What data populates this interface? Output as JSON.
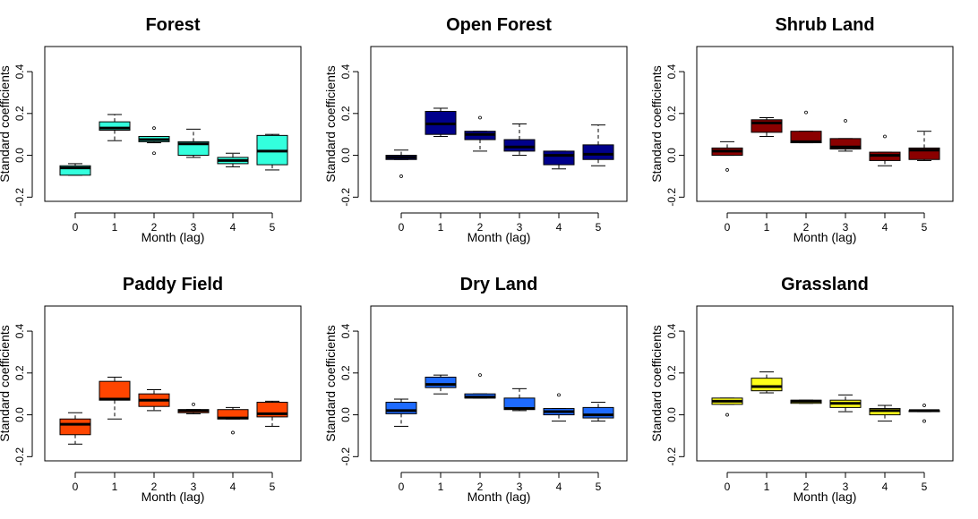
{
  "chart_data": [
    {
      "type": "boxplot",
      "title": "Forest",
      "xlabel": "Month (lag)",
      "ylabel": "Standard coefficients",
      "fill": "#33ffdd",
      "categories": [
        "0",
        "1",
        "2",
        "3",
        "4",
        "5"
      ],
      "yticks": [
        "-0.2",
        "0.0",
        "0.2",
        "0.4"
      ],
      "ylim": [
        -0.22,
        0.52
      ],
      "boxes": [
        {
          "min": -0.095,
          "q1": -0.095,
          "median": -0.06,
          "q3": -0.05,
          "max": -0.04,
          "outliers": []
        },
        {
          "min": 0.07,
          "q1": 0.12,
          "median": 0.13,
          "q3": 0.16,
          "max": 0.195,
          "outliers": []
        },
        {
          "min": 0.06,
          "q1": 0.065,
          "median": 0.075,
          "q3": 0.09,
          "max": 0.09,
          "outliers": [
            0.13,
            0.01
          ]
        },
        {
          "min": -0.01,
          "q1": 0.0,
          "median": 0.055,
          "q3": 0.065,
          "max": 0.125,
          "outliers": []
        },
        {
          "min": -0.055,
          "q1": -0.04,
          "median": -0.025,
          "q3": -0.01,
          "max": 0.01,
          "outliers": []
        },
        {
          "min": -0.07,
          "q1": -0.045,
          "median": 0.02,
          "q3": 0.095,
          "max": 0.1,
          "outliers": []
        }
      ]
    },
    {
      "type": "boxplot",
      "title": "Open Forest",
      "xlabel": "Month (lag)",
      "ylabel": "Standard coefficients",
      "fill": "#00008b",
      "categories": [
        "0",
        "1",
        "2",
        "3",
        "4",
        "5"
      ],
      "yticks": [
        "-0.2",
        "0.0",
        "0.2",
        "0.4"
      ],
      "ylim": [
        -0.22,
        0.52
      ],
      "boxes": [
        {
          "min": -0.02,
          "q1": -0.02,
          "median": -0.01,
          "q3": 0.0,
          "max": 0.025,
          "outliers": [
            -0.1
          ]
        },
        {
          "min": 0.09,
          "q1": 0.1,
          "median": 0.15,
          "q3": 0.21,
          "max": 0.225,
          "outliers": []
        },
        {
          "min": 0.02,
          "q1": 0.075,
          "median": 0.1,
          "q3": 0.115,
          "max": 0.115,
          "outliers": [
            0.18
          ]
        },
        {
          "min": 0.0,
          "q1": 0.02,
          "median": 0.04,
          "q3": 0.075,
          "max": 0.15,
          "outliers": []
        },
        {
          "min": -0.065,
          "q1": -0.045,
          "median": 0.0,
          "q3": 0.02,
          "max": 0.02,
          "outliers": []
        },
        {
          "min": -0.05,
          "q1": -0.02,
          "median": 0.005,
          "q3": 0.05,
          "max": 0.145,
          "outliers": []
        }
      ]
    },
    {
      "type": "boxplot",
      "title": "Shrub Land",
      "xlabel": "Month (lag)",
      "ylabel": "Standard coefficients",
      "fill": "#8b0000",
      "categories": [
        "0",
        "1",
        "2",
        "3",
        "4",
        "5"
      ],
      "yticks": [
        "-0.2",
        "0.0",
        "0.2",
        "0.4"
      ],
      "ylim": [
        -0.22,
        0.52
      ],
      "boxes": [
        {
          "min": 0.0,
          "q1": 0.0,
          "median": 0.02,
          "q3": 0.035,
          "max": 0.065,
          "outliers": [
            -0.07
          ]
        },
        {
          "min": 0.09,
          "q1": 0.11,
          "median": 0.155,
          "q3": 0.17,
          "max": 0.18,
          "outliers": []
        },
        {
          "min": 0.06,
          "q1": 0.06,
          "median": 0.065,
          "q3": 0.115,
          "max": 0.115,
          "outliers": [
            0.205
          ]
        },
        {
          "min": 0.02,
          "q1": 0.03,
          "median": 0.04,
          "q3": 0.08,
          "max": 0.08,
          "outliers": [
            0.165
          ]
        },
        {
          "min": -0.05,
          "q1": -0.025,
          "median": 0.0,
          "q3": 0.015,
          "max": 0.015,
          "outliers": [
            0.09
          ]
        },
        {
          "min": -0.025,
          "q1": -0.02,
          "median": 0.025,
          "q3": 0.035,
          "max": 0.115,
          "outliers": []
        }
      ]
    },
    {
      "type": "boxplot",
      "title": "Paddy Field",
      "xlabel": "Month (lag)",
      "ylabel": "Standard coefficients",
      "fill": "#ff4500",
      "categories": [
        "0",
        "1",
        "2",
        "3",
        "4",
        "5"
      ],
      "yticks": [
        "-0.2",
        "0.0",
        "0.2",
        "0.4"
      ],
      "ylim": [
        -0.22,
        0.52
      ],
      "boxes": [
        {
          "min": -0.14,
          "q1": -0.095,
          "median": -0.045,
          "q3": -0.02,
          "max": 0.01,
          "outliers": []
        },
        {
          "min": -0.02,
          "q1": 0.07,
          "median": 0.075,
          "q3": 0.16,
          "max": 0.18,
          "outliers": []
        },
        {
          "min": 0.02,
          "q1": 0.04,
          "median": 0.07,
          "q3": 0.1,
          "max": 0.12,
          "outliers": []
        },
        {
          "min": 0.005,
          "q1": 0.01,
          "median": 0.02,
          "q3": 0.025,
          "max": 0.025,
          "outliers": [
            0.05
          ]
        },
        {
          "min": -0.02,
          "q1": -0.02,
          "median": -0.015,
          "q3": 0.025,
          "max": 0.035,
          "outliers": [
            -0.085
          ]
        },
        {
          "min": -0.055,
          "q1": -0.01,
          "median": 0.005,
          "q3": 0.06,
          "max": 0.065,
          "outliers": []
        }
      ]
    },
    {
      "type": "boxplot",
      "title": "Dry Land",
      "xlabel": "Month (lag)",
      "ylabel": "Standard coefficients",
      "fill": "#1e6bff",
      "categories": [
        "0",
        "1",
        "2",
        "3",
        "4",
        "5"
      ],
      "yticks": [
        "-0.2",
        "0.0",
        "0.2",
        "0.4"
      ],
      "ylim": [
        -0.22,
        0.52
      ],
      "boxes": [
        {
          "min": -0.055,
          "q1": 0.005,
          "median": 0.02,
          "q3": 0.06,
          "max": 0.075,
          "outliers": []
        },
        {
          "min": 0.1,
          "q1": 0.13,
          "median": 0.145,
          "q3": 0.18,
          "max": 0.19,
          "outliers": []
        },
        {
          "min": 0.08,
          "q1": 0.08,
          "median": 0.085,
          "q3": 0.1,
          "max": 0.1,
          "outliers": [
            0.19
          ]
        },
        {
          "min": 0.02,
          "q1": 0.025,
          "median": 0.03,
          "q3": 0.08,
          "max": 0.125,
          "outliers": []
        },
        {
          "min": -0.03,
          "q1": 0.0,
          "median": 0.015,
          "q3": 0.03,
          "max": 0.03,
          "outliers": [
            0.095
          ]
        },
        {
          "min": -0.03,
          "q1": -0.015,
          "median": 0.0,
          "q3": 0.035,
          "max": 0.06,
          "outliers": []
        }
      ]
    },
    {
      "type": "boxplot",
      "title": "Grassland",
      "xlabel": "Month (lag)",
      "ylabel": "Standard coefficients",
      "fill": "#ffff1a",
      "categories": [
        "0",
        "1",
        "2",
        "3",
        "4",
        "5"
      ],
      "yticks": [
        "-0.2",
        "0.0",
        "0.2",
        "0.4"
      ],
      "ylim": [
        -0.22,
        0.52
      ],
      "boxes": [
        {
          "min": 0.05,
          "q1": 0.05,
          "median": 0.065,
          "q3": 0.08,
          "max": 0.08,
          "outliers": [
            0.0
          ]
        },
        {
          "min": 0.105,
          "q1": 0.115,
          "median": 0.135,
          "q3": 0.175,
          "max": 0.205,
          "outliers": []
        },
        {
          "min": 0.055,
          "q1": 0.055,
          "median": 0.065,
          "q3": 0.07,
          "max": 0.07,
          "outliers": []
        },
        {
          "min": 0.015,
          "q1": 0.035,
          "median": 0.055,
          "q3": 0.07,
          "max": 0.095,
          "outliers": []
        },
        {
          "min": -0.03,
          "q1": 0.0,
          "median": 0.02,
          "q3": 0.03,
          "max": 0.045,
          "outliers": []
        },
        {
          "min": 0.015,
          "q1": 0.015,
          "median": 0.02,
          "q3": 0.02,
          "max": 0.02,
          "outliers": [
            0.045,
            -0.03
          ]
        }
      ]
    }
  ]
}
